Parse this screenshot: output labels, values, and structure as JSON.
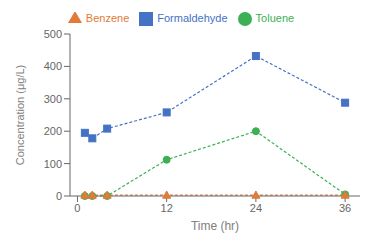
{
  "chart_data": {
    "type": "line",
    "xlabel": "Time (hr)",
    "ylabel": "Concentration (μg/L)",
    "x": [
      1,
      2,
      4,
      12,
      24,
      36
    ],
    "series": [
      {
        "name": "Toluene",
        "color": "#3CB054",
        "marker": "circle",
        "line_style": "dashed",
        "values": [
          0,
          0,
          0,
          112,
          200,
          5
        ]
      },
      {
        "name": "Formaldehyde",
        "color": "#4472C4",
        "marker": "square",
        "line_style": "dashed",
        "values": [
          195,
          178,
          208,
          258,
          432,
          288
        ]
      },
      {
        "name": "Benzene",
        "color": "#E07B39",
        "marker": "triangle",
        "line_style": "dashed",
        "values": [
          3,
          3,
          3,
          3,
          3,
          3
        ]
      }
    ],
    "xlim": [
      -1,
      38
    ],
    "xticks": [
      0,
      12,
      24,
      36
    ],
    "ylim": [
      0,
      500
    ],
    "yticks": [
      0,
      100,
      200,
      300,
      400,
      500
    ],
    "grid": false,
    "legend": "top"
  }
}
